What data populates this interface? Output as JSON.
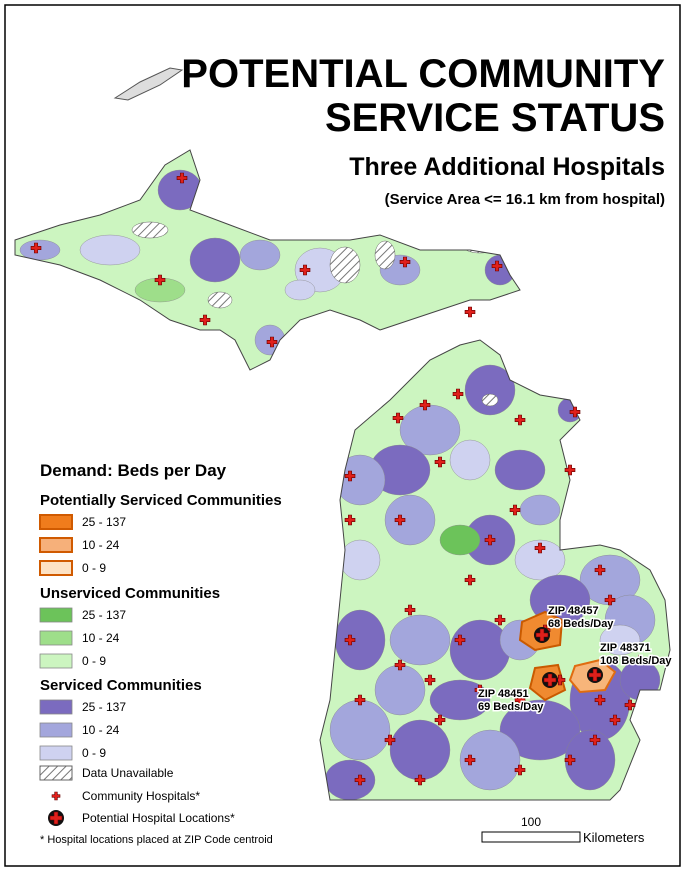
{
  "title": {
    "line1": "POTENTIAL COMMUNITY",
    "line2": "SERVICE STATUS",
    "subtitle": "Three Additional Hospitals",
    "note": "(Service Area <= 16.1 km from hospital)"
  },
  "legend": {
    "title": "Demand: Beds per Day",
    "groups": [
      {
        "heading": "Potentially Serviced Communities",
        "items": [
          "25 - 137",
          "10 - 24",
          "0 - 9"
        ]
      },
      {
        "heading": "Unserviced Communities",
        "items": [
          "25 - 137",
          "10 - 24",
          "0 - 9"
        ]
      },
      {
        "heading": "Serviced Communities",
        "items": [
          "25 - 137",
          "10 - 24",
          "0 - 9"
        ]
      }
    ],
    "unavailable": "Data Unavailable",
    "community": "Community Hospitals*",
    "potential": "Potential Hospital Locations*",
    "footnote": "* Hospital locations placed at ZIP Code centroid"
  },
  "sites": [
    {
      "zip": "ZIP 48457",
      "beds": "68 Beds/Day"
    },
    {
      "zip": "ZIP 48371",
      "beds": "108 Beds/Day"
    },
    {
      "zip": "ZIP 48451",
      "beds": "69 Beds/Day"
    }
  ],
  "scale": {
    "value": "100",
    "unit": "Kilometers"
  }
}
